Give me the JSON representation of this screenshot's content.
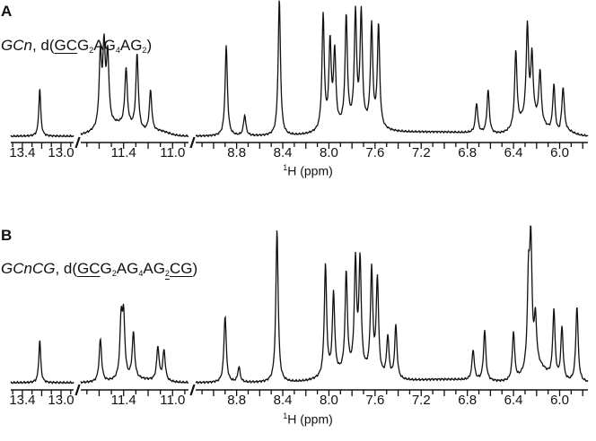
{
  "chart_data": [
    {
      "type": "line",
      "panel": "A",
      "title": "GCn, d(GCG2AG4AG2)",
      "sample_name": "GCn",
      "sequence": "d(GCG2AG4AG2)",
      "xlabel": "1H (ppm)",
      "ylabel": "",
      "x_reversed": true,
      "axis_segments": [
        {
          "range": [
            13.45,
            12.9
          ],
          "ticks": [
            "13.4",
            "13.0"
          ]
        },
        {
          "range": [
            11.7,
            10.9
          ],
          "ticks": [
            "11.4",
            "11.0"
          ]
        },
        {
          "range": [
            9.1,
            5.8
          ],
          "ticks": [
            "8.8",
            "8.4",
            "8.0",
            "7.6",
            "7.2",
            "6.8",
            "6.4",
            "6.0"
          ]
        }
      ],
      "peaks": [
        {
          "ppm": 13.22,
          "rel_height": 0.35
        },
        {
          "ppm": 11.59,
          "rel_height": 0.52
        },
        {
          "ppm": 11.56,
          "rel_height": 0.55
        },
        {
          "ppm": 11.53,
          "rel_height": 0.5
        },
        {
          "ppm": 11.38,
          "rel_height": 0.42
        },
        {
          "ppm": 11.29,
          "rel_height": 0.55
        },
        {
          "ppm": 11.18,
          "rel_height": 0.3
        },
        {
          "ppm": 8.89,
          "rel_height": 0.66
        },
        {
          "ppm": 8.73,
          "rel_height": 0.15
        },
        {
          "ppm": 8.43,
          "rel_height": 1.0
        },
        {
          "ppm": 8.05,
          "rel_height": 0.84
        },
        {
          "ppm": 7.99,
          "rel_height": 0.62
        },
        {
          "ppm": 7.95,
          "rel_height": 0.55
        },
        {
          "ppm": 7.85,
          "rel_height": 0.8
        },
        {
          "ppm": 7.77,
          "rel_height": 0.81
        },
        {
          "ppm": 7.72,
          "rel_height": 0.82
        },
        {
          "ppm": 7.63,
          "rel_height": 0.74
        },
        {
          "ppm": 7.57,
          "rel_height": 0.75
        },
        {
          "ppm": 6.72,
          "rel_height": 0.22
        },
        {
          "ppm": 6.62,
          "rel_height": 0.32
        },
        {
          "ppm": 6.38,
          "rel_height": 0.56
        },
        {
          "ppm": 6.28,
          "rel_height": 0.68
        },
        {
          "ppm": 6.24,
          "rel_height": 0.45
        },
        {
          "ppm": 6.17,
          "rel_height": 0.38
        },
        {
          "ppm": 6.05,
          "rel_height": 0.35
        },
        {
          "ppm": 5.97,
          "rel_height": 0.32
        }
      ]
    },
    {
      "type": "line",
      "panel": "B",
      "title": "GCnCG, d(GCG2AG4AG2CG)",
      "sample_name": "GCnCG",
      "sequence": "d(GCG2AG4AG2CG)",
      "xlabel": "1H (ppm)",
      "ylabel": "",
      "x_reversed": true,
      "axis_segments": [
        {
          "range": [
            13.45,
            12.9
          ],
          "ticks": [
            "13.4",
            "13.0"
          ]
        },
        {
          "range": [
            11.7,
            10.9
          ],
          "ticks": [
            "11.4",
            "11.0"
          ]
        },
        {
          "range": [
            9.1,
            5.8
          ],
          "ticks": [
            "8.8",
            "8.4",
            "8.0",
            "7.6",
            "7.2",
            "6.8",
            "6.4",
            "6.0"
          ]
        }
      ],
      "peaks": [
        {
          "ppm": 13.22,
          "rel_height": 0.28
        },
        {
          "ppm": 11.59,
          "rel_height": 0.28
        },
        {
          "ppm": 11.42,
          "rel_height": 0.38
        },
        {
          "ppm": 11.4,
          "rel_height": 0.38
        },
        {
          "ppm": 11.32,
          "rel_height": 0.3
        },
        {
          "ppm": 11.12,
          "rel_height": 0.22
        },
        {
          "ppm": 11.07,
          "rel_height": 0.2
        },
        {
          "ppm": 8.9,
          "rel_height": 0.44
        },
        {
          "ppm": 8.78,
          "rel_height": 0.1
        },
        {
          "ppm": 8.45,
          "rel_height": 1.0
        },
        {
          "ppm": 8.03,
          "rel_height": 0.73
        },
        {
          "ppm": 7.96,
          "rel_height": 0.53
        },
        {
          "ppm": 7.85,
          "rel_height": 0.65
        },
        {
          "ppm": 7.77,
          "rel_height": 0.71
        },
        {
          "ppm": 7.73,
          "rel_height": 0.72
        },
        {
          "ppm": 7.63,
          "rel_height": 0.68
        },
        {
          "ppm": 7.58,
          "rel_height": 0.63
        },
        {
          "ppm": 7.49,
          "rel_height": 0.27
        },
        {
          "ppm": 7.42,
          "rel_height": 0.35
        },
        {
          "ppm": 6.75,
          "rel_height": 0.2
        },
        {
          "ppm": 6.65,
          "rel_height": 0.33
        },
        {
          "ppm": 6.4,
          "rel_height": 0.32
        },
        {
          "ppm": 6.27,
          "rel_height": 0.55
        },
        {
          "ppm": 6.25,
          "rel_height": 0.78
        },
        {
          "ppm": 6.21,
          "rel_height": 0.3
        },
        {
          "ppm": 6.05,
          "rel_height": 0.45
        },
        {
          "ppm": 5.98,
          "rel_height": 0.35
        },
        {
          "ppm": 5.85,
          "rel_height": 0.5
        }
      ]
    }
  ],
  "panels": {
    "a": {
      "letter": "A",
      "sample": "GCn",
      "sep": ", d(",
      "seq": [
        {
          "t": "GC",
          "ul": true
        },
        {
          "t": "G"
        },
        {
          "sub": "2"
        },
        {
          "t": "AG"
        },
        {
          "sub": "4"
        },
        {
          "t": "AG"
        },
        {
          "sub": "2"
        },
        {
          "t": ")"
        }
      ],
      "xlabel_sup": "1",
      "xlabel_text": "H (ppm)"
    },
    "b": {
      "letter": "B",
      "sample": "GCnCG",
      "sep": ", d(",
      "seq": [
        {
          "t": "GC",
          "ul": true
        },
        {
          "t": "G"
        },
        {
          "sub": "2"
        },
        {
          "t": "AG"
        },
        {
          "sub": "4"
        },
        {
          "t": "AG"
        },
        {
          "sub": "2",
          "ul": true
        },
        {
          "t": "CG",
          "ul": true
        },
        {
          "t": ")"
        }
      ],
      "xlabel_sup": "1",
      "xlabel_text": "H (ppm)"
    }
  },
  "tick_labels": [
    "13.4",
    "13.0",
    "11.4",
    "11.0",
    "8.8",
    "8.4",
    "8.0",
    "7.6",
    "7.2",
    "6.8",
    "6.4",
    "6.0"
  ],
  "colors": {
    "line": "#111111",
    "background": "#ffffff"
  }
}
